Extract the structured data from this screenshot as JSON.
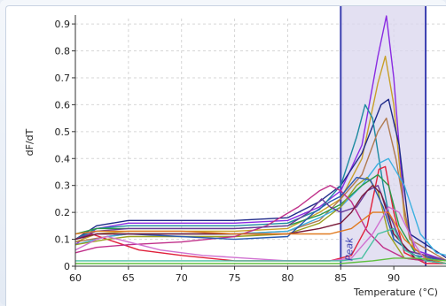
{
  "chart_data": {
    "type": "line",
    "title": "",
    "xlabel": "Temperature (°C)",
    "ylabel": "dF/dT",
    "xlim": [
      60,
      95
    ],
    "ylim": [
      0,
      0.92
    ],
    "x_ticks": [
      "60",
      "65",
      "70",
      "75",
      "80",
      "85",
      "90"
    ],
    "y_ticks": [
      "0",
      "0.1",
      "0.2",
      "0.3",
      "0.4",
      "0.5",
      "0.6",
      "0.7",
      "0.8",
      "0.9"
    ],
    "grid": true,
    "highlight_region": {
      "label": "Peak",
      "x_range": [
        85,
        93
      ]
    },
    "colors": {
      "region_fill": "#d9d6ee",
      "region_border": "#3a3fb0",
      "grid": "#d6d6d6"
    },
    "series": [
      {
        "color": "#8a2be2",
        "points": [
          [
            60,
            0.08
          ],
          [
            62,
            0.14
          ],
          [
            65,
            0.16
          ],
          [
            70,
            0.16
          ],
          [
            75,
            0.16
          ],
          [
            80,
            0.17
          ],
          [
            83,
            0.22
          ],
          [
            85,
            0.28
          ],
          [
            87,
            0.45
          ],
          [
            88.5,
            0.78
          ],
          [
            89.3,
            0.93
          ],
          [
            90,
            0.7
          ],
          [
            91,
            0.2
          ],
          [
            92,
            0.06
          ],
          [
            95,
            0.02
          ]
        ]
      },
      {
        "color": "#c8a02a",
        "points": [
          [
            60,
            0.09
          ],
          [
            62,
            0.12
          ],
          [
            65,
            0.13
          ],
          [
            70,
            0.13
          ],
          [
            75,
            0.13
          ],
          [
            80,
            0.14
          ],
          [
            83,
            0.2
          ],
          [
            85,
            0.25
          ],
          [
            87,
            0.4
          ],
          [
            88.5,
            0.68
          ],
          [
            89.2,
            0.78
          ],
          [
            90,
            0.6
          ],
          [
            91,
            0.18
          ],
          [
            92,
            0.05
          ],
          [
            95,
            0.02
          ]
        ]
      },
      {
        "color": "#1f2a8a",
        "points": [
          [
            60,
            0.1
          ],
          [
            62,
            0.15
          ],
          [
            65,
            0.17
          ],
          [
            70,
            0.17
          ],
          [
            75,
            0.17
          ],
          [
            80,
            0.18
          ],
          [
            83,
            0.24
          ],
          [
            85,
            0.3
          ],
          [
            87,
            0.42
          ],
          [
            88.8,
            0.6
          ],
          [
            89.5,
            0.62
          ],
          [
            90.5,
            0.45
          ],
          [
            91.5,
            0.12
          ],
          [
            95,
            0.03
          ]
        ]
      },
      {
        "color": "#1c8aa0",
        "points": [
          [
            60,
            0.1
          ],
          [
            62,
            0.14
          ],
          [
            65,
            0.15
          ],
          [
            70,
            0.15
          ],
          [
            75,
            0.15
          ],
          [
            80,
            0.16
          ],
          [
            83,
            0.21
          ],
          [
            85,
            0.3
          ],
          [
            86.5,
            0.48
          ],
          [
            87.3,
            0.6
          ],
          [
            88,
            0.55
          ],
          [
            89,
            0.3
          ],
          [
            90,
            0.1
          ],
          [
            92,
            0.04
          ],
          [
            95,
            0.02
          ]
        ]
      },
      {
        "color": "#b07a50",
        "points": [
          [
            60,
            0.09
          ],
          [
            63,
            0.11
          ],
          [
            65,
            0.12
          ],
          [
            70,
            0.12
          ],
          [
            75,
            0.12
          ],
          [
            80,
            0.13
          ],
          [
            83,
            0.17
          ],
          [
            85,
            0.25
          ],
          [
            87,
            0.34
          ],
          [
            88.5,
            0.5
          ],
          [
            89.3,
            0.55
          ],
          [
            90.2,
            0.4
          ],
          [
            91.5,
            0.1
          ],
          [
            95,
            0.02
          ]
        ]
      },
      {
        "color": "#3cb0e0",
        "points": [
          [
            60,
            0.08
          ],
          [
            63,
            0.11
          ],
          [
            65,
            0.12
          ],
          [
            70,
            0.12
          ],
          [
            75,
            0.12
          ],
          [
            80,
            0.13
          ],
          [
            83,
            0.18
          ],
          [
            85,
            0.22
          ],
          [
            87,
            0.3
          ],
          [
            88.5,
            0.38
          ],
          [
            89.5,
            0.4
          ],
          [
            91,
            0.3
          ],
          [
            92.5,
            0.12
          ],
          [
            94,
            0.05
          ],
          [
            95,
            0.04
          ]
        ]
      },
      {
        "color": "#e0203a",
        "points": [
          [
            60,
            0.1
          ],
          [
            61.5,
            0.12
          ],
          [
            63,
            0.1
          ],
          [
            66,
            0.06
          ],
          [
            70,
            0.04
          ],
          [
            75,
            0.02
          ],
          [
            80,
            0.02
          ],
          [
            84,
            0.02
          ],
          [
            86,
            0.04
          ],
          [
            87.5,
            0.15
          ],
          [
            88.6,
            0.36
          ],
          [
            89.2,
            0.37
          ],
          [
            90,
            0.2
          ],
          [
            91,
            0.05
          ],
          [
            93,
            0.01
          ],
          [
            95,
            0.01
          ]
        ]
      },
      {
        "color": "#2a9a4a",
        "points": [
          [
            60,
            0.12
          ],
          [
            62,
            0.14
          ],
          [
            65,
            0.14
          ],
          [
            70,
            0.14
          ],
          [
            75,
            0.14
          ],
          [
            80,
            0.15
          ],
          [
            83,
            0.19
          ],
          [
            85,
            0.23
          ],
          [
            87,
            0.3
          ],
          [
            88.5,
            0.34
          ],
          [
            89.5,
            0.3
          ],
          [
            90.5,
            0.15
          ],
          [
            92,
            0.05
          ],
          [
            95,
            0.02
          ]
        ]
      },
      {
        "color": "#9aa020",
        "points": [
          [
            60,
            0.08
          ],
          [
            63,
            0.1
          ],
          [
            65,
            0.11
          ],
          [
            70,
            0.11
          ],
          [
            75,
            0.11
          ],
          [
            80,
            0.12
          ],
          [
            83,
            0.16
          ],
          [
            85,
            0.22
          ],
          [
            86.5,
            0.3
          ],
          [
            87.5,
            0.33
          ],
          [
            88.5,
            0.28
          ],
          [
            89.5,
            0.12
          ],
          [
            91,
            0.03
          ],
          [
            95,
            0.01
          ]
        ]
      },
      {
        "color": "#c0308a",
        "points": [
          [
            60,
            0.05
          ],
          [
            62,
            0.07
          ],
          [
            65,
            0.08
          ],
          [
            70,
            0.09
          ],
          [
            75,
            0.11
          ],
          [
            78,
            0.15
          ],
          [
            81,
            0.22
          ],
          [
            83,
            0.28
          ],
          [
            84,
            0.3
          ],
          [
            85,
            0.28
          ],
          [
            86,
            0.24
          ],
          [
            87.5,
            0.13
          ],
          [
            89,
            0.07
          ],
          [
            91,
            0.03
          ],
          [
            95,
            0.01
          ]
        ]
      },
      {
        "color": "#2a5ab0",
        "points": [
          [
            60,
            0.1
          ],
          [
            62,
            0.12
          ],
          [
            65,
            0.12
          ],
          [
            70,
            0.11
          ],
          [
            75,
            0.1
          ],
          [
            80,
            0.11
          ],
          [
            82.5,
            0.2
          ],
          [
            84,
            0.24
          ],
          [
            85,
            0.26
          ],
          [
            86.5,
            0.33
          ],
          [
            87.8,
            0.32
          ],
          [
            89,
            0.22
          ],
          [
            90,
            0.1
          ],
          [
            92,
            0.04
          ],
          [
            95,
            0.02
          ]
        ]
      },
      {
        "color": "#6a3a9a",
        "points": [
          [
            60,
            0.1
          ],
          [
            62,
            0.13
          ],
          [
            65,
            0.14
          ],
          [
            70,
            0.14
          ],
          [
            75,
            0.14
          ],
          [
            80,
            0.15
          ],
          [
            82,
            0.2
          ],
          [
            83.2,
            0.25
          ],
          [
            84,
            0.22
          ],
          [
            85,
            0.2
          ],
          [
            86.5,
            0.22
          ],
          [
            87.5,
            0.28
          ],
          [
            88.5,
            0.3
          ],
          [
            89.5,
            0.2
          ],
          [
            91,
            0.06
          ],
          [
            95,
            0.02
          ]
        ]
      },
      {
        "color": "#7a1a3a",
        "points": [
          [
            60,
            0.1
          ],
          [
            62,
            0.12
          ],
          [
            65,
            0.12
          ],
          [
            70,
            0.12
          ],
          [
            75,
            0.12
          ],
          [
            80,
            0.12
          ],
          [
            83,
            0.14
          ],
          [
            85,
            0.16
          ],
          [
            86,
            0.2
          ],
          [
            87,
            0.26
          ],
          [
            88,
            0.3
          ],
          [
            88.8,
            0.27
          ],
          [
            90,
            0.12
          ],
          [
            92,
            0.03
          ],
          [
            95,
            0.01
          ]
        ]
      },
      {
        "color": "#e07a20",
        "points": [
          [
            60,
            0.12
          ],
          [
            62,
            0.13
          ],
          [
            65,
            0.13
          ],
          [
            70,
            0.13
          ],
          [
            75,
            0.12
          ],
          [
            80,
            0.12
          ],
          [
            84,
            0.12
          ],
          [
            86,
            0.14
          ],
          [
            88,
            0.2
          ],
          [
            89.5,
            0.2
          ],
          [
            91,
            0.1
          ],
          [
            93,
            0.03
          ],
          [
            95,
            0.01
          ]
        ]
      },
      {
        "color": "#d070d0",
        "points": [
          [
            60,
            0.06
          ],
          [
            62,
            0.1
          ],
          [
            63,
            0.11
          ],
          [
            65,
            0.09
          ],
          [
            68,
            0.06
          ],
          [
            72,
            0.04
          ],
          [
            76,
            0.03
          ],
          [
            80,
            0.02
          ],
          [
            84,
            0.02
          ],
          [
            86,
            0.03
          ],
          [
            88,
            0.12
          ],
          [
            89.5,
            0.22
          ],
          [
            90.5,
            0.2
          ],
          [
            92,
            0.08
          ],
          [
            93,
            0.02
          ],
          [
            95,
            0.01
          ]
        ]
      },
      {
        "color": "#4ac0a0",
        "points": [
          [
            60,
            0.02
          ],
          [
            65,
            0.02
          ],
          [
            70,
            0.02
          ],
          [
            75,
            0.02
          ],
          [
            80,
            0.02
          ],
          [
            85,
            0.02
          ],
          [
            87,
            0.03
          ],
          [
            88.5,
            0.12
          ],
          [
            90,
            0.14
          ],
          [
            91,
            0.06
          ],
          [
            93,
            0.02
          ],
          [
            95,
            0.01
          ]
        ]
      },
      {
        "color": "#60c040",
        "points": [
          [
            60,
            0.01
          ],
          [
            65,
            0.01
          ],
          [
            70,
            0.01
          ],
          [
            75,
            0.01
          ],
          [
            80,
            0.01
          ],
          [
            85,
            0.01
          ],
          [
            88,
            0.02
          ],
          [
            90,
            0.03
          ],
          [
            92,
            0.03
          ],
          [
            95,
            0.02
          ]
        ]
      }
    ]
  }
}
